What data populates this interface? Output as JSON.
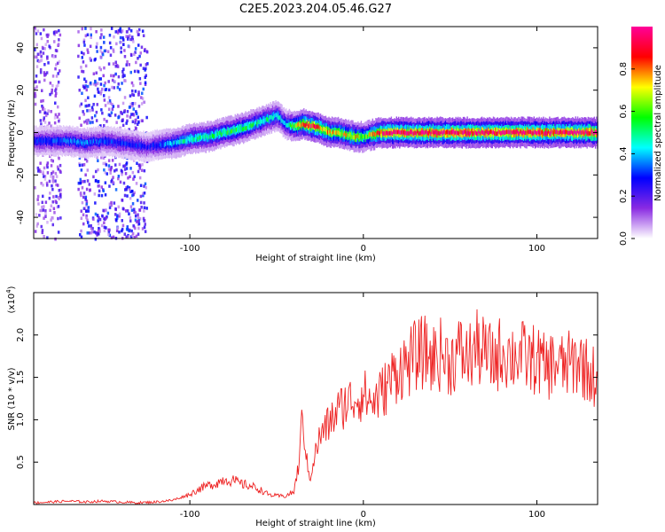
{
  "title": "C2E5.2023.204.05.46.G27",
  "chart_data": [
    {
      "type": "heatmap",
      "xlabel": "Height of straight line (km)",
      "ylabel": "Frequency (Hz)",
      "xlim": [
        -190,
        135
      ],
      "ylim": [
        -50,
        50
      ],
      "x_ticks": [
        -100,
        0,
        100
      ],
      "x_tick_labels": [
        "-100",
        "0",
        "100"
      ],
      "y_ticks": [
        -40,
        -20,
        0,
        20,
        40
      ],
      "y_tick_labels": [
        "-40",
        "-20",
        "0",
        "20",
        "40"
      ],
      "colorbar": {
        "label": "Normalized spectral amplitude",
        "range": [
          0,
          1
        ],
        "ticks": [
          0.0,
          0.2,
          0.4,
          0.6,
          0.8
        ],
        "tick_labels": [
          "0.0",
          "0.2",
          "0.4",
          "0.6",
          "0.8"
        ],
        "colors": [
          "#ffffff",
          "#8a2be2",
          "#0000ff",
          "#00ffff",
          "#00ff00",
          "#ffff00",
          "#ff0000",
          "#ff0099"
        ]
      },
      "ridge": {
        "description": "peak frequency track vs height",
        "x": [
          -190,
          -170,
          -160,
          -150,
          -140,
          -130,
          -125,
          -120,
          -110,
          -100,
          -90,
          -80,
          -70,
          -60,
          -50,
          -45,
          -40,
          -35,
          -30,
          -25,
          -20,
          -15,
          -10,
          -5,
          0,
          10,
          20,
          40,
          60,
          80,
          100,
          120,
          135
        ],
        "y": [
          -4,
          -4,
          -5,
          -4,
          -5,
          -6,
          -7,
          -6,
          -5,
          -3,
          -2,
          0,
          2,
          5,
          8,
          4,
          3,
          4,
          3,
          2,
          0,
          0,
          -1,
          -2,
          -2,
          0,
          0,
          0,
          0,
          0,
          0,
          0,
          0
        ],
        "amplitude": [
          0.3,
          0.35,
          0.35,
          0.3,
          0.3,
          0.3,
          0.25,
          0.3,
          0.4,
          0.5,
          0.5,
          0.55,
          0.55,
          0.5,
          0.45,
          0.4,
          0.6,
          0.85,
          0.9,
          0.8,
          0.75,
          0.7,
          0.7,
          0.75,
          0.6,
          0.9,
          0.95,
          0.95,
          0.95,
          0.95,
          0.95,
          0.95,
          0.95
        ]
      },
      "noise_regions": [
        {
          "x_range": [
            -190,
            -175
          ],
          "amplitude": 0.15
        },
        {
          "x_range": [
            -165,
            -125
          ],
          "amplitude": 0.2
        }
      ]
    },
    {
      "type": "line",
      "xlabel": "Height of straight line (km)",
      "ylabel": "SNR (10 * v/v)",
      "y_multiplier_label": "(x10",
      "y_multiplier_exp": "4",
      "xlim": [
        -190,
        135
      ],
      "ylim": [
        0,
        2.5
      ],
      "x_ticks": [
        -100,
        0,
        100
      ],
      "x_tick_labels": [
        "-100",
        "0",
        "100"
      ],
      "y_ticks": [
        0.5,
        1.0,
        1.5,
        2.0
      ],
      "y_tick_labels": [
        "0.5",
        "1.0",
        "1.5",
        "2.0"
      ],
      "series": [
        {
          "color": "#ee2222",
          "x": [
            -190,
            -180,
            -170,
            -160,
            -150,
            -140,
            -130,
            -120,
            -110,
            -100,
            -95,
            -90,
            -85,
            -80,
            -75,
            -70,
            -65,
            -60,
            -55,
            -50,
            -45,
            -40,
            -37,
            -35,
            -33,
            -31,
            -29,
            -27,
            -25,
            -20,
            -15,
            -10,
            -5,
            0,
            5,
            10,
            15,
            20,
            25,
            30,
            35,
            40,
            45,
            50,
            55,
            60,
            65,
            70,
            75,
            80,
            85,
            90,
            95,
            100,
            105,
            110,
            115,
            120,
            125,
            130,
            135
          ],
          "y": [
            0.02,
            0.03,
            0.04,
            0.03,
            0.04,
            0.03,
            0.02,
            0.03,
            0.05,
            0.12,
            0.18,
            0.22,
            0.25,
            0.3,
            0.28,
            0.24,
            0.22,
            0.18,
            0.12,
            0.1,
            0.1,
            0.15,
            0.5,
            1.1,
            0.55,
            0.3,
            0.5,
            0.65,
            0.8,
            0.95,
            1.1,
            1.2,
            1.25,
            1.3,
            1.2,
            1.3,
            1.45,
            1.6,
            1.65,
            1.75,
            1.8,
            1.72,
            1.78,
            1.68,
            1.8,
            1.72,
            1.85,
            1.78,
            1.7,
            1.82,
            1.75,
            1.78,
            1.7,
            1.72,
            1.6,
            1.68,
            1.62,
            1.66,
            1.7,
            1.55,
            1.5
          ]
        }
      ]
    }
  ]
}
